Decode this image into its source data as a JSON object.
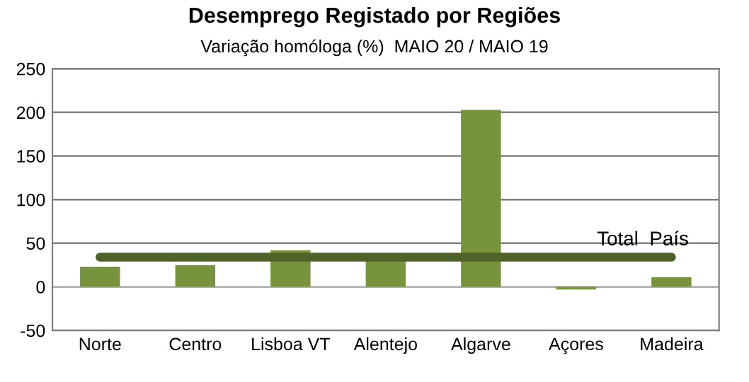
{
  "chart_data": {
    "type": "bar",
    "title": "Desemprego Registado por Regiões",
    "subtitle": "Variação homóloga (%)  MAIO 20 / MAIO 19",
    "categories": [
      "Norte",
      "Centro",
      "Lisboa VT",
      "Alentejo",
      "Algarve",
      "Açores",
      "Madeira"
    ],
    "values": [
      23,
      25,
      42,
      33,
      203,
      -3,
      11
    ],
    "color": "#77933c",
    "ylim": [
      -50,
      250
    ],
    "yticks": [
      -50,
      0,
      50,
      100,
      150,
      200,
      250
    ],
    "grid": "y",
    "ref_lines": [
      {
        "axis": "y",
        "value": 34,
        "label": "Total  País",
        "color": "#4f6228",
        "line_style": "solid"
      }
    ]
  }
}
